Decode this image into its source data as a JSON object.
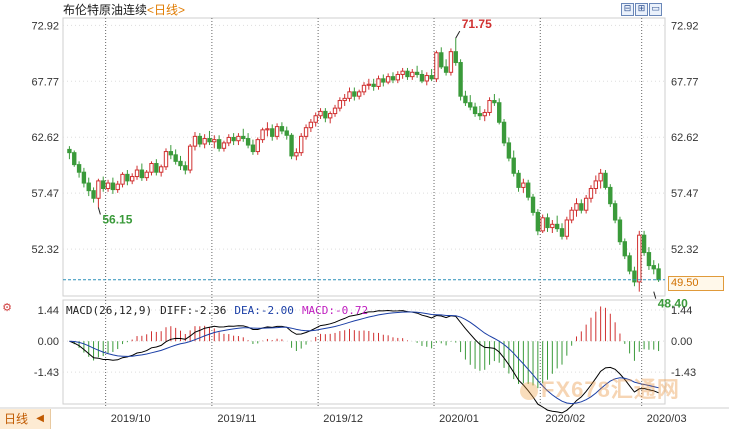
{
  "header": {
    "title": "布伦特原油连续",
    "period_label": "<日线>"
  },
  "toolbar": {
    "buttons": [
      {
        "name": "zoom-out-icon",
        "glyph": "⊟"
      },
      {
        "name": "zoom-in-icon",
        "glyph": "⊞"
      },
      {
        "name": "maximize-icon",
        "glyph": "▭"
      }
    ]
  },
  "period_tab": {
    "label": "日线",
    "arrow": "◀"
  },
  "price_tag": "49.50",
  "macd_legend": {
    "name": "MACD(26,12,9)",
    "diff": "DIFF:-2.36",
    "dea": "DEA:-2.00",
    "macd": "MACD:-0.72"
  },
  "watermark": "FX678汇通网",
  "colors": {
    "up": "#d03030",
    "down": "#3a9a3a",
    "grid": "#dddddd",
    "dashed": "#2b8fb8",
    "diff_line": "#000000",
    "dea_line": "#1b3fa6"
  },
  "chart_data": [
    {
      "type": "candlestick",
      "title": "布伦特原油连续",
      "y_ticks": [
        "72.92",
        "67.77",
        "62.62",
        "57.47",
        "52.32"
      ],
      "ylim": [
        48.0,
        73.6
      ],
      "x_ticks": [
        "2019/10",
        "2019/11",
        "2019/12",
        "2020/01",
        "2020/02",
        "2020/03"
      ],
      "current_price": 49.5,
      "annotations": [
        {
          "label": "71.75",
          "type": "max",
          "value": 71.75,
          "index": 80
        },
        {
          "label": "56.15",
          "type": "min",
          "value": 56.15,
          "index": 6
        },
        {
          "label": "48.40",
          "type": "min",
          "value": 48.4,
          "index": 121
        }
      ],
      "ohlc": [
        [
          61.5,
          61.8,
          60.6,
          61.2
        ],
        [
          61.2,
          61.4,
          59.9,
          60.1
        ],
        [
          60.1,
          60.4,
          58.9,
          59.4
        ],
        [
          59.4,
          59.8,
          58.0,
          58.4
        ],
        [
          58.4,
          58.9,
          57.2,
          57.7
        ],
        [
          57.7,
          58.0,
          56.6,
          57.0
        ],
        [
          57.0,
          58.8,
          56.15,
          58.6
        ],
        [
          58.6,
          59.0,
          57.6,
          57.9
        ],
        [
          57.9,
          58.7,
          57.6,
          58.4
        ],
        [
          58.4,
          58.9,
          57.4,
          57.8
        ],
        [
          57.8,
          58.6,
          57.5,
          58.3
        ],
        [
          58.3,
          59.4,
          58.0,
          59.2
        ],
        [
          59.2,
          59.6,
          58.2,
          58.6
        ],
        [
          58.6,
          59.3,
          58.3,
          59.0
        ],
        [
          59.0,
          60.0,
          58.7,
          59.6
        ],
        [
          59.6,
          60.2,
          58.6,
          58.9
        ],
        [
          58.9,
          59.6,
          58.6,
          59.4
        ],
        [
          59.4,
          60.4,
          59.1,
          60.2
        ],
        [
          60.2,
          60.6,
          59.1,
          59.4
        ],
        [
          59.4,
          60.1,
          59.0,
          59.9
        ],
        [
          59.9,
          61.6,
          59.6,
          61.3
        ],
        [
          61.3,
          61.9,
          60.6,
          61.0
        ],
        [
          61.0,
          61.5,
          60.1,
          60.4
        ],
        [
          60.4,
          60.9,
          59.6,
          60.0
        ],
        [
          60.0,
          60.4,
          59.2,
          59.6
        ],
        [
          59.6,
          62.0,
          59.3,
          61.8
        ],
        [
          61.8,
          63.1,
          61.4,
          62.7
        ],
        [
          62.7,
          63.0,
          61.7,
          62.0
        ],
        [
          62.0,
          62.9,
          61.6,
          62.5
        ],
        [
          62.5,
          63.2,
          61.9,
          62.2
        ],
        [
          62.2,
          62.8,
          61.6,
          62.4
        ],
        [
          62.4,
          62.8,
          61.3,
          61.6
        ],
        [
          61.6,
          62.3,
          61.3,
          62.1
        ],
        [
          62.1,
          62.9,
          61.8,
          62.6
        ],
        [
          62.6,
          63.0,
          61.9,
          62.3
        ],
        [
          62.3,
          63.0,
          61.9,
          62.7
        ],
        [
          62.7,
          63.4,
          62.2,
          62.5
        ],
        [
          62.5,
          63.0,
          61.6,
          61.9
        ],
        [
          61.9,
          62.4,
          61.0,
          61.3
        ],
        [
          61.3,
          62.6,
          61.0,
          62.4
        ],
        [
          62.4,
          63.5,
          62.1,
          63.3
        ],
        [
          63.3,
          64.0,
          62.7,
          63.4
        ],
        [
          63.4,
          63.8,
          62.3,
          62.7
        ],
        [
          62.7,
          63.9,
          62.4,
          63.6
        ],
        [
          63.6,
          64.0,
          62.9,
          63.2
        ],
        [
          63.2,
          63.6,
          62.4,
          62.8
        ],
        [
          62.8,
          63.0,
          60.6,
          60.9
        ],
        [
          60.9,
          61.6,
          60.5,
          61.2
        ],
        [
          61.2,
          63.0,
          60.9,
          62.7
        ],
        [
          62.7,
          63.8,
          62.4,
          63.5
        ],
        [
          63.5,
          64.3,
          63.1,
          64.0
        ],
        [
          64.0,
          64.9,
          63.6,
          64.6
        ],
        [
          64.6,
          65.3,
          64.3,
          65.0
        ],
        [
          65.0,
          65.3,
          64.0,
          64.4
        ],
        [
          64.4,
          65.0,
          63.9,
          64.8
        ],
        [
          64.8,
          65.6,
          64.5,
          65.3
        ],
        [
          65.3,
          66.3,
          65.0,
          66.0
        ],
        [
          66.0,
          66.6,
          65.5,
          66.2
        ],
        [
          66.2,
          67.2,
          65.9,
          66.8
        ],
        [
          66.8,
          67.2,
          66.0,
          66.4
        ],
        [
          66.4,
          67.0,
          66.1,
          66.8
        ],
        [
          66.8,
          67.7,
          66.5,
          67.4
        ],
        [
          67.4,
          68.0,
          67.0,
          67.5
        ],
        [
          67.5,
          68.0,
          66.9,
          67.3
        ],
        [
          67.3,
          68.3,
          67.0,
          68.0
        ],
        [
          68.0,
          68.4,
          67.3,
          67.7
        ],
        [
          67.7,
          68.5,
          67.5,
          68.2
        ],
        [
          68.2,
          68.6,
          67.6,
          67.9
        ],
        [
          67.9,
          68.7,
          67.6,
          68.4
        ],
        [
          68.4,
          69.0,
          68.0,
          68.7
        ],
        [
          68.7,
          69.0,
          67.9,
          68.2
        ],
        [
          68.2,
          68.9,
          67.9,
          68.6
        ],
        [
          68.6,
          69.2,
          68.1,
          68.4
        ],
        [
          68.4,
          68.8,
          67.6,
          67.8
        ],
        [
          67.8,
          68.6,
          67.4,
          68.3
        ],
        [
          68.3,
          68.9,
          67.8,
          68.0
        ],
        [
          68.0,
          70.6,
          67.7,
          70.4
        ],
        [
          70.4,
          70.9,
          68.9,
          69.1
        ],
        [
          69.1,
          69.8,
          68.3,
          68.6
        ],
        [
          68.6,
          70.8,
          68.3,
          70.5
        ],
        [
          70.5,
          71.75,
          69.2,
          69.5
        ],
        [
          69.5,
          69.8,
          66.0,
          66.4
        ],
        [
          66.4,
          66.9,
          65.5,
          65.8
        ],
        [
          65.8,
          66.5,
          65.1,
          65.4
        ],
        [
          65.4,
          65.8,
          64.5,
          64.8
        ],
        [
          64.8,
          65.5,
          64.2,
          64.6
        ],
        [
          64.6,
          65.2,
          64.1,
          64.9
        ],
        [
          64.9,
          66.3,
          64.6,
          66.0
        ],
        [
          66.0,
          66.6,
          65.5,
          65.8
        ],
        [
          65.8,
          66.2,
          63.8,
          64.0
        ],
        [
          64.0,
          64.3,
          61.8,
          62.1
        ],
        [
          62.1,
          62.6,
          60.4,
          60.7
        ],
        [
          60.7,
          61.4,
          59.0,
          59.3
        ],
        [
          59.3,
          59.6,
          57.6,
          58.0
        ],
        [
          58.0,
          58.8,
          57.5,
          58.4
        ],
        [
          58.4,
          58.7,
          56.8,
          57.1
        ],
        [
          57.1,
          57.4,
          55.4,
          55.7
        ],
        [
          55.7,
          56.0,
          53.6,
          54.0
        ],
        [
          54.0,
          55.5,
          53.8,
          55.2
        ],
        [
          55.2,
          55.6,
          53.9,
          54.3
        ],
        [
          54.3,
          55.0,
          53.8,
          54.6
        ],
        [
          54.6,
          55.4,
          53.9,
          54.2
        ],
        [
          54.2,
          54.7,
          53.2,
          53.5
        ],
        [
          53.5,
          55.3,
          53.2,
          55.0
        ],
        [
          55.0,
          56.2,
          54.7,
          55.9
        ],
        [
          55.9,
          57.0,
          55.3,
          56.5
        ],
        [
          56.5,
          56.9,
          55.6,
          55.9
        ],
        [
          55.9,
          57.3,
          55.6,
          57.0
        ],
        [
          57.0,
          58.2,
          56.6,
          57.9
        ],
        [
          57.9,
          59.1,
          57.4,
          58.6
        ],
        [
          58.6,
          59.7,
          57.9,
          59.3
        ],
        [
          59.3,
          59.6,
          57.8,
          58.0
        ],
        [
          58.0,
          58.3,
          56.2,
          56.5
        ],
        [
          56.5,
          56.8,
          54.7,
          55.0
        ],
        [
          55.0,
          55.3,
          52.7,
          53.0
        ],
        [
          53.0,
          53.3,
          51.4,
          51.7
        ],
        [
          51.7,
          52.0,
          50.0,
          50.3
        ],
        [
          50.3,
          50.7,
          48.9,
          49.3
        ],
        [
          49.3,
          54.0,
          48.4,
          53.6
        ],
        [
          53.6,
          54.0,
          51.7,
          52.0
        ],
        [
          52.0,
          52.5,
          50.4,
          50.8
        ],
        [
          50.8,
          51.3,
          50.0,
          50.5
        ],
        [
          50.5,
          51.0,
          49.3,
          49.5
        ]
      ]
    },
    {
      "type": "macd",
      "params": "MACD(26,12,9)",
      "y_ticks": [
        "1.44",
        "0.00",
        "-1.43"
      ],
      "ylim": [
        -2.9,
        1.9
      ],
      "last": {
        "diff": -2.36,
        "dea": -2.0,
        "macd": -0.72
      }
    }
  ]
}
